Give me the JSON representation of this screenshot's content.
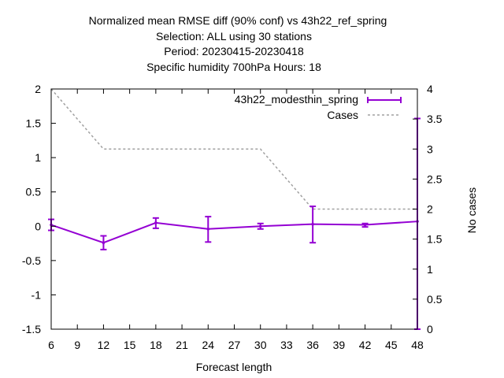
{
  "chart_data": {
    "type": "line",
    "title_lines": [
      "Normalized mean RMSE diff (90% conf) vs 43h22_ref_spring",
      "Selection: ALL using    30 stations",
      "Period: 20230415-20230418",
      "Specific humidity 700hPa   Hours:  18"
    ],
    "xlabel": "Forecast length",
    "ylabel": "",
    "y2label": "No cases",
    "xlim": [
      6,
      48
    ],
    "ylim": [
      -1.5,
      2
    ],
    "y2lim": [
      0,
      4
    ],
    "xticks": [
      "6",
      "9",
      "12",
      "15",
      "18",
      "21",
      "24",
      "27",
      "30",
      "33",
      "36",
      "39",
      "42",
      "45",
      "48"
    ],
    "yticks": [
      "2",
      "1.5",
      "1",
      "0.5",
      "0",
      "-0.5",
      "-1",
      "-1.5"
    ],
    "y2ticks": [
      "4",
      "3.5",
      "3",
      "2.5",
      "2",
      "1.5",
      "1",
      "0.5",
      "0"
    ],
    "legend_position": "top-right",
    "series": [
      {
        "name": "43h22_modesthin_spring",
        "color": "#9400d3",
        "axis": "y",
        "x": [
          6,
          12,
          18,
          24,
          30,
          36,
          42,
          48
        ],
        "values": [
          0.02,
          -0.24,
          0.05,
          -0.04,
          0.0,
          0.03,
          0.02,
          0.07
        ],
        "err_low": [
          -0.06,
          -0.34,
          -0.03,
          -0.23,
          -0.04,
          -0.24,
          -0.01,
          -1.5
        ],
        "err_high": [
          0.1,
          -0.14,
          0.12,
          0.14,
          0.04,
          0.29,
          0.04,
          1.57
        ]
      },
      {
        "name": "Cases",
        "color": "#a0a0a0",
        "axis": "y2",
        "dashed": true,
        "x": [
          6,
          12,
          18,
          24,
          30,
          36,
          42,
          48
        ],
        "values": [
          4,
          3,
          3,
          3,
          3,
          2,
          2,
          2
        ]
      }
    ]
  }
}
